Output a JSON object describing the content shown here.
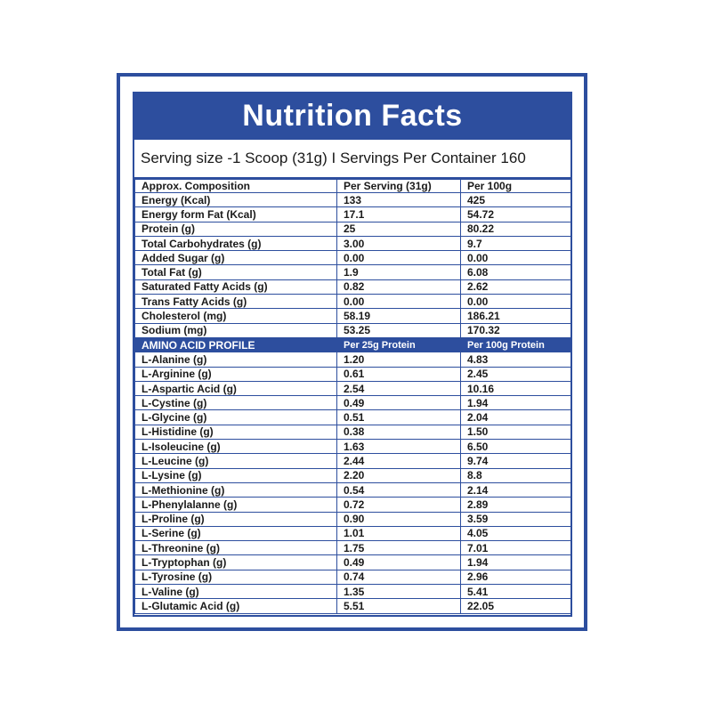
{
  "title": "Nutrition Facts",
  "serving_text": "Serving size -1 Scoop (31g)  I  Servings Per Container 160",
  "composition": {
    "headers": [
      "Approx. Composition",
      "Per Serving  (31g)",
      "Per 100g"
    ],
    "rows": [
      [
        "Energy (Kcal)",
        "133",
        "425"
      ],
      [
        "Energy form Fat (Kcal)",
        "17.1",
        "54.72"
      ],
      [
        "Protein (g)",
        "25",
        "80.22"
      ],
      [
        "Total Carbohydrates (g)",
        "3.00",
        "9.7"
      ],
      [
        "Added Sugar (g)",
        "0.00",
        "0.00"
      ],
      [
        "Total Fat (g)",
        "1.9",
        "6.08"
      ],
      [
        "Saturated Fatty Acids (g)",
        "0.82",
        "2.62"
      ],
      [
        "Trans Fatty Acids (g)",
        "0.00",
        "0.00"
      ],
      [
        "Cholesterol (mg)",
        "58.19",
        "186.21"
      ],
      [
        "Sodium (mg)",
        "53.25",
        "170.32"
      ]
    ]
  },
  "amino": {
    "headers": [
      "AMINO ACID PROFILE",
      "Per 25g Protein",
      "Per 100g Protein"
    ],
    "rows": [
      [
        "L-Alanine (g)",
        "1.20",
        "4.83"
      ],
      [
        "L-Arginine (g)",
        "0.61",
        "2.45"
      ],
      [
        "L-Aspartic Acid (g)",
        "2.54",
        "10.16"
      ],
      [
        "L-Cystine (g)",
        "0.49",
        "1.94"
      ],
      [
        "L-Glycine (g)",
        "0.51",
        "2.04"
      ],
      [
        "L-Histidine (g)",
        "0.38",
        "1.50"
      ],
      [
        "L-Isoleucine (g)",
        "1.63",
        "6.50"
      ],
      [
        "L-Leucine (g)",
        "2.44",
        "9.74"
      ],
      [
        "L-Lysine (g)",
        "2.20",
        "8.8"
      ],
      [
        "L-Methionine (g)",
        "0.54",
        "2.14"
      ],
      [
        "L-Phenylalanne (g)",
        "0.72",
        "2.89"
      ],
      [
        "L-Proline (g)",
        "0.90",
        "3.59"
      ],
      [
        "L-Serine (g)",
        "1.01",
        "4.05"
      ],
      [
        "L-Threonine (g)",
        "1.75",
        "7.01"
      ],
      [
        "L-Tryptophan (g)",
        "0.49",
        "1.94"
      ],
      [
        "L-Tyrosine (g)",
        "0.74",
        "2.96"
      ],
      [
        "L-Valine (g)",
        "1.35",
        "5.41"
      ],
      [
        "L-Glutamic Acid (g)",
        "5.51",
        "22.05"
      ]
    ]
  },
  "colors": {
    "brand_blue": "#2d4e9e",
    "text": "#1a1a1a",
    "background": "#ffffff"
  }
}
